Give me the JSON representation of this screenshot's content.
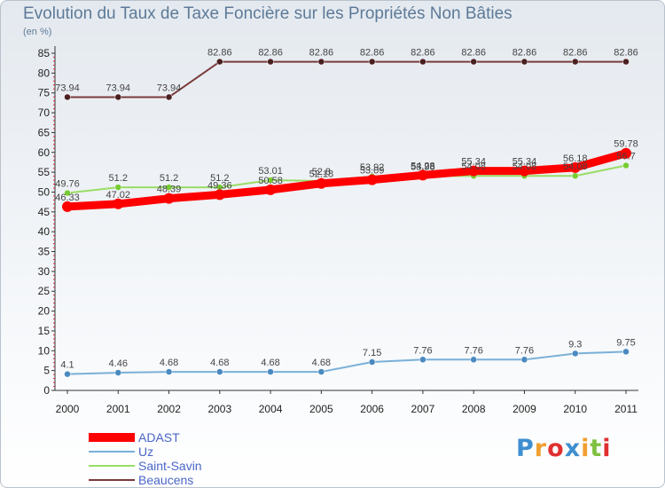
{
  "header": {
    "title": "Evolution du Taux de Taxe Foncière sur les Propriétés Non Bâties",
    "unit": "(en %)"
  },
  "logo": {
    "letters": [
      "P",
      "r",
      "o",
      "x",
      "i",
      "t",
      "i"
    ],
    "colors": [
      "#3f8fd0",
      "#f0a030",
      "#e03030",
      "#3f8fd0",
      "#f0a030",
      "#80c040",
      "#e03030"
    ]
  },
  "chart_data": {
    "type": "line",
    "x": [
      "2000",
      "2001",
      "2002",
      "2003",
      "2004",
      "2005",
      "2006",
      "2007",
      "2008",
      "2009",
      "2010",
      "2011"
    ],
    "ylim": [
      0,
      85
    ],
    "yticks": [
      0,
      5,
      10,
      15,
      20,
      25,
      30,
      35,
      40,
      45,
      50,
      55,
      60,
      65,
      70,
      75,
      80,
      85
    ],
    "grid": false,
    "legend_position": "bottom-left",
    "series": [
      {
        "name": "Beaucens",
        "color": "#7a3b3b",
        "values": [
          73.94,
          73.94,
          73.94,
          82.86,
          82.86,
          82.86,
          82.86,
          82.86,
          82.86,
          82.86,
          82.86,
          82.86
        ],
        "labels": [
          "73.94",
          "73.94",
          "73.94",
          "82.86",
          "82.86",
          "82.86",
          "82.86",
          "82.86",
          "82.86",
          "82.86",
          "82.86",
          "82.86"
        ]
      },
      {
        "name": "Saint-Savin",
        "color": "#99dd66",
        "values": [
          49.76,
          51.2,
          51.2,
          51.2,
          53.01,
          52.8,
          53.92,
          53.98,
          54.08,
          54.08,
          54.08,
          56.7
        ],
        "labels": [
          "49.76",
          "51.2",
          "51.2",
          "51.2",
          "53.01",
          "52.8",
          "53.92",
          "53.98",
          "54.08",
          "54.08",
          "54.08",
          "56.7"
        ]
      },
      {
        "name": "ADAST",
        "color": "#ff0000",
        "values": [
          46.33,
          47.02,
          48.39,
          49.36,
          50.58,
          52.18,
          53.09,
          54.28,
          55.34,
          55.34,
          56.18,
          59.78
        ],
        "labels": [
          "46.33",
          "47.02",
          "48.39",
          "49.36",
          "50.58",
          "52.18",
          "53.09",
          "54.28",
          "55.34",
          "55.34",
          "56.18",
          "59.78"
        ]
      },
      {
        "name": "Uz",
        "color": "#7ab0d8",
        "values": [
          4.1,
          4.46,
          4.68,
          4.68,
          4.68,
          4.68,
          7.15,
          7.76,
          7.76,
          7.76,
          9.3,
          9.75
        ],
        "labels": [
          "4.1",
          "4.46",
          "4.68",
          "4.68",
          "4.68",
          "4.68",
          "7.15",
          "7.76",
          "7.76",
          "7.76",
          "9.3",
          "9.75"
        ]
      }
    ],
    "legend_order": [
      "ADAST",
      "Uz",
      "Saint-Savin",
      "Beaucens"
    ]
  }
}
